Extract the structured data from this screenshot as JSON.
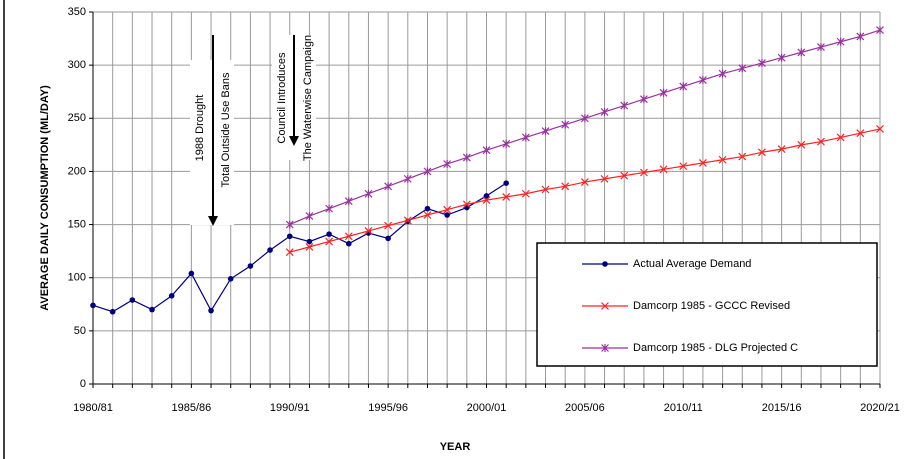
{
  "chart_data": {
    "type": "line",
    "ylabel": "AVERAGE DAILY CONSUMPTION (ML/DAY)",
    "xlabel": "YEAR",
    "categories": [
      "1980/81",
      null,
      null,
      null,
      null,
      "1985/86",
      null,
      null,
      null,
      null,
      "1990/91",
      null,
      null,
      null,
      null,
      "1995/96",
      null,
      null,
      null,
      null,
      "2000/01",
      null,
      null,
      null,
      null,
      "2005/06",
      null,
      null,
      null,
      null,
      "2010/11",
      null,
      null,
      null,
      null,
      "2015/16",
      null,
      null,
      null,
      null,
      "2020/21"
    ],
    "ylim": [
      0,
      350
    ],
    "yticks": [
      0,
      50,
      100,
      150,
      200,
      250,
      300,
      350
    ],
    "grid": true,
    "series": [
      {
        "name": "Actual Average Demand",
        "color": "#000080",
        "marker": "circle",
        "values": [
          74,
          68,
          79,
          70,
          83,
          104,
          69,
          99,
          111,
          126,
          139,
          134,
          141,
          132,
          142,
          137,
          153,
          165,
          159,
          166,
          177,
          189,
          null,
          null,
          null,
          null,
          null,
          null,
          null,
          null,
          null,
          null,
          null,
          null,
          null,
          null,
          null,
          null,
          null,
          null,
          null
        ]
      },
      {
        "name": "Damcorp 1985 - GCCC Revised",
        "color": "#ff2020",
        "marker": "x",
        "values": [
          null,
          null,
          null,
          null,
          null,
          null,
          null,
          null,
          null,
          null,
          124,
          129,
          134,
          139,
          144,
          149,
          154,
          159,
          164,
          169,
          173,
          176,
          179,
          183,
          186,
          190,
          193,
          196,
          199,
          202,
          205,
          208,
          211,
          214,
          218,
          221,
          225,
          228,
          232,
          236,
          240
        ]
      },
      {
        "name": "Damcorp 1985 - DLG Projected C",
        "color": "#9932a0",
        "marker": "star",
        "values": [
          null,
          null,
          null,
          null,
          null,
          null,
          null,
          null,
          null,
          null,
          150,
          158,
          165,
          172,
          179,
          186,
          193,
          200,
          207,
          213,
          220,
          226,
          232,
          238,
          244,
          250,
          256,
          262,
          268,
          274,
          280,
          286,
          292,
          297,
          302,
          307,
          312,
          317,
          322,
          327,
          333
        ]
      }
    ],
    "annotations": [
      {
        "lines": [
          "1988 Drought",
          "Total Outside Use Bans"
        ]
      },
      {
        "lines": [
          "Council Introduces",
          "The Waterwise Campaign"
        ]
      }
    ]
  }
}
